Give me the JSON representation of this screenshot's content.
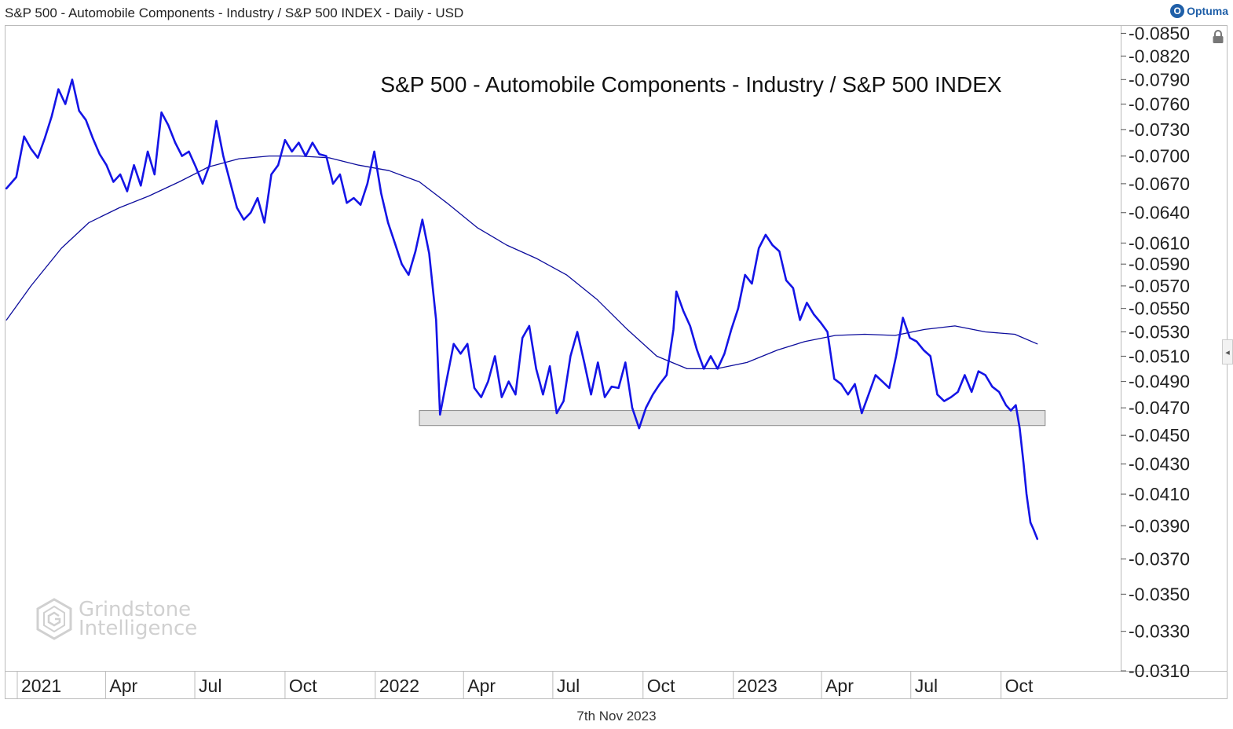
{
  "header": {
    "title": "S&P 500 - Automobile Components - Industry / S&P 500 INDEX - Daily - USD",
    "brand": "Optuma",
    "brand_mark": "O"
  },
  "watermark": {
    "line1": "Grindstone",
    "line2": "Intelligence"
  },
  "footer": {
    "date": "7th Nov 2023"
  },
  "icons": {
    "lock": "lock-icon",
    "collapse": "chevron-left-icon",
    "brand": "optuma-logo-icon",
    "watermark": "hexagon-g-logo-icon"
  },
  "colors": {
    "price": "#1414e6",
    "ma": "#0c0c9c",
    "band_fill": "#dddddd",
    "band_stroke": "#888888"
  },
  "chart_data": {
    "type": "line",
    "title": "S&P 500 - Automobile Components - Industry / S&P 500 INDEX",
    "y_scale": "log",
    "ylim": [
      0.031,
      0.086
    ],
    "xlim": [
      "2020-12-20",
      "2024-01-31"
    ],
    "y_ticks": [
      "0.0850",
      "0.0820",
      "0.0790",
      "0.0760",
      "0.0730",
      "0.0700",
      "0.0670",
      "0.0640",
      "0.0610",
      "0.0590",
      "0.0570",
      "0.0550",
      "0.0530",
      "0.0510",
      "0.0490",
      "0.0470",
      "0.0450",
      "0.0430",
      "0.0410",
      "0.0390",
      "0.0370",
      "0.0350",
      "0.0330",
      "0.0310"
    ],
    "x_ticks": [
      {
        "date": "2021-01-01",
        "label": "2021"
      },
      {
        "date": "2021-04-01",
        "label": "Apr"
      },
      {
        "date": "2021-07-01",
        "label": "Jul"
      },
      {
        "date": "2021-10-01",
        "label": "Oct"
      },
      {
        "date": "2022-01-01",
        "label": "2022"
      },
      {
        "date": "2022-04-01",
        "label": "Apr"
      },
      {
        "date": "2022-07-01",
        "label": "Jul"
      },
      {
        "date": "2022-10-01",
        "label": "Oct"
      },
      {
        "date": "2023-01-01",
        "label": "2023"
      },
      {
        "date": "2023-04-01",
        "label": "Apr"
      },
      {
        "date": "2023-07-01",
        "label": "Jul"
      },
      {
        "date": "2023-10-01",
        "label": "Oct"
      }
    ],
    "grid": false,
    "support_band": {
      "x": [
        "2022-02-15",
        "2023-11-15"
      ],
      "y": [
        0.0457,
        0.0468
      ]
    },
    "series": [
      {
        "name": "Price",
        "points": [
          [
            "2020-12-21",
            0.0665
          ],
          [
            "2020-12-31",
            0.0677
          ],
          [
            "2021-01-08",
            0.0722
          ],
          [
            "2021-01-15",
            0.0708
          ],
          [
            "2021-01-22",
            0.0698
          ],
          [
            "2021-01-29",
            0.072
          ],
          [
            "2021-02-05",
            0.0745
          ],
          [
            "2021-02-12",
            0.0778
          ],
          [
            "2021-02-19",
            0.076
          ],
          [
            "2021-02-26",
            0.079
          ],
          [
            "2021-03-05",
            0.0752
          ],
          [
            "2021-03-12",
            0.0741
          ],
          [
            "2021-03-19",
            0.072
          ],
          [
            "2021-03-26",
            0.0702
          ],
          [
            "2021-04-02",
            0.069
          ],
          [
            "2021-04-09",
            0.0672
          ],
          [
            "2021-04-16",
            0.068
          ],
          [
            "2021-04-23",
            0.0662
          ],
          [
            "2021-04-30",
            0.069
          ],
          [
            "2021-05-07",
            0.0668
          ],
          [
            "2021-05-14",
            0.0705
          ],
          [
            "2021-05-21",
            0.068
          ],
          [
            "2021-05-28",
            0.075
          ],
          [
            "2021-06-04",
            0.0735
          ],
          [
            "2021-06-11",
            0.0715
          ],
          [
            "2021-06-18",
            0.07
          ],
          [
            "2021-06-25",
            0.0705
          ],
          [
            "2021-07-02",
            0.0688
          ],
          [
            "2021-07-09",
            0.067
          ],
          [
            "2021-07-16",
            0.069
          ],
          [
            "2021-07-23",
            0.074
          ],
          [
            "2021-07-30",
            0.07
          ],
          [
            "2021-08-06",
            0.0672
          ],
          [
            "2021-08-13",
            0.0645
          ],
          [
            "2021-08-20",
            0.0633
          ],
          [
            "2021-08-27",
            0.064
          ],
          [
            "2021-09-03",
            0.0655
          ],
          [
            "2021-09-10",
            0.063
          ],
          [
            "2021-09-17",
            0.068
          ],
          [
            "2021-09-24",
            0.069
          ],
          [
            "2021-10-01",
            0.0718
          ],
          [
            "2021-10-08",
            0.0705
          ],
          [
            "2021-10-15",
            0.0715
          ],
          [
            "2021-10-22",
            0.07
          ],
          [
            "2021-10-29",
            0.0715
          ],
          [
            "2021-11-05",
            0.0702
          ],
          [
            "2021-11-12",
            0.07
          ],
          [
            "2021-11-19",
            0.067
          ],
          [
            "2021-11-26",
            0.068
          ],
          [
            "2021-12-03",
            0.065
          ],
          [
            "2021-12-10",
            0.0655
          ],
          [
            "2021-12-17",
            0.0648
          ],
          [
            "2021-12-24",
            0.067
          ],
          [
            "2021-12-31",
            0.0705
          ],
          [
            "2022-01-07",
            0.066
          ],
          [
            "2022-01-14",
            0.063
          ],
          [
            "2022-01-21",
            0.061
          ],
          [
            "2022-01-28",
            0.059
          ],
          [
            "2022-02-04",
            0.058
          ],
          [
            "2022-02-11",
            0.0602
          ],
          [
            "2022-02-18",
            0.0633
          ],
          [
            "2022-02-25",
            0.06
          ],
          [
            "2022-03-04",
            0.054
          ],
          [
            "2022-03-08",
            0.0465
          ],
          [
            "2022-03-15",
            0.0492
          ],
          [
            "2022-03-22",
            0.052
          ],
          [
            "2022-03-29",
            0.0512
          ],
          [
            "2022-04-05",
            0.052
          ],
          [
            "2022-04-12",
            0.0485
          ],
          [
            "2022-04-19",
            0.0478
          ],
          [
            "2022-04-26",
            0.049
          ],
          [
            "2022-05-03",
            0.051
          ],
          [
            "2022-05-10",
            0.0478
          ],
          [
            "2022-05-17",
            0.049
          ],
          [
            "2022-05-24",
            0.048
          ],
          [
            "2022-05-31",
            0.0525
          ],
          [
            "2022-06-07",
            0.0535
          ],
          [
            "2022-06-14",
            0.05
          ],
          [
            "2022-06-21",
            0.048
          ],
          [
            "2022-06-28",
            0.0502
          ],
          [
            "2022-07-05",
            0.0466
          ],
          [
            "2022-07-12",
            0.0475
          ],
          [
            "2022-07-19",
            0.051
          ],
          [
            "2022-07-26",
            0.053
          ],
          [
            "2022-08-02",
            0.0505
          ],
          [
            "2022-08-09",
            0.048
          ],
          [
            "2022-08-16",
            0.0505
          ],
          [
            "2022-08-23",
            0.0478
          ],
          [
            "2022-08-30",
            0.0486
          ],
          [
            "2022-09-06",
            0.0485
          ],
          [
            "2022-09-13",
            0.0505
          ],
          [
            "2022-09-20",
            0.047
          ],
          [
            "2022-09-27",
            0.0455
          ],
          [
            "2022-10-04",
            0.047
          ],
          [
            "2022-10-11",
            0.048
          ],
          [
            "2022-10-18",
            0.0488
          ],
          [
            "2022-10-25",
            0.0495
          ],
          [
            "2022-11-01",
            0.0532
          ],
          [
            "2022-11-04",
            0.0565
          ],
          [
            "2022-11-11",
            0.0548
          ],
          [
            "2022-11-18",
            0.0535
          ],
          [
            "2022-11-25",
            0.0515
          ],
          [
            "2022-12-02",
            0.05
          ],
          [
            "2022-12-09",
            0.051
          ],
          [
            "2022-12-16",
            0.05
          ],
          [
            "2022-12-23",
            0.0512
          ],
          [
            "2022-12-30",
            0.0532
          ],
          [
            "2023-01-06",
            0.055
          ],
          [
            "2023-01-13",
            0.058
          ],
          [
            "2023-01-20",
            0.0572
          ],
          [
            "2023-01-27",
            0.0605
          ],
          [
            "2023-02-03",
            0.0618
          ],
          [
            "2023-02-10",
            0.0608
          ],
          [
            "2023-02-17",
            0.0602
          ],
          [
            "2023-02-24",
            0.0575
          ],
          [
            "2023-03-03",
            0.0568
          ],
          [
            "2023-03-10",
            0.054
          ],
          [
            "2023-03-17",
            0.0555
          ],
          [
            "2023-03-24",
            0.0545
          ],
          [
            "2023-03-31",
            0.0538
          ],
          [
            "2023-04-07",
            0.053
          ],
          [
            "2023-04-14",
            0.0492
          ],
          [
            "2023-04-21",
            0.0488
          ],
          [
            "2023-04-28",
            0.048
          ],
          [
            "2023-05-05",
            0.0488
          ],
          [
            "2023-05-12",
            0.0466
          ],
          [
            "2023-05-19",
            0.048
          ],
          [
            "2023-05-26",
            0.0495
          ],
          [
            "2023-06-02",
            0.049
          ],
          [
            "2023-06-09",
            0.0485
          ],
          [
            "2023-06-16",
            0.051
          ],
          [
            "2023-06-23",
            0.0542
          ],
          [
            "2023-06-30",
            0.0525
          ],
          [
            "2023-07-07",
            0.0522
          ],
          [
            "2023-07-14",
            0.0515
          ],
          [
            "2023-07-21",
            0.051
          ],
          [
            "2023-07-28",
            0.048
          ],
          [
            "2023-08-04",
            0.0475
          ],
          [
            "2023-08-11",
            0.0478
          ],
          [
            "2023-08-18",
            0.0482
          ],
          [
            "2023-08-25",
            0.0495
          ],
          [
            "2023-09-01",
            0.0482
          ],
          [
            "2023-09-08",
            0.0498
          ],
          [
            "2023-09-15",
            0.0495
          ],
          [
            "2023-09-22",
            0.0486
          ],
          [
            "2023-09-29",
            0.0482
          ],
          [
            "2023-10-06",
            0.0472
          ],
          [
            "2023-10-11",
            0.0468
          ],
          [
            "2023-10-16",
            0.0472
          ],
          [
            "2023-10-20",
            0.0455
          ],
          [
            "2023-10-24",
            0.043
          ],
          [
            "2023-10-27",
            0.041
          ],
          [
            "2023-10-31",
            0.0392
          ],
          [
            "2023-11-03",
            0.0388
          ],
          [
            "2023-11-07",
            0.0382
          ]
        ]
      },
      {
        "name": "Moving Average",
        "points": [
          [
            "2020-12-21",
            0.054
          ],
          [
            "2021-01-15",
            0.057
          ],
          [
            "2021-02-15",
            0.0605
          ],
          [
            "2021-03-15",
            0.063
          ],
          [
            "2021-04-15",
            0.0645
          ],
          [
            "2021-05-15",
            0.0657
          ],
          [
            "2021-06-15",
            0.0672
          ],
          [
            "2021-07-15",
            0.0688
          ],
          [
            "2021-08-15",
            0.0697
          ],
          [
            "2021-09-15",
            0.07
          ],
          [
            "2021-10-15",
            0.07
          ],
          [
            "2021-11-15",
            0.0698
          ],
          [
            "2021-12-15",
            0.069
          ],
          [
            "2022-01-15",
            0.0684
          ],
          [
            "2022-02-15",
            0.0672
          ],
          [
            "2022-03-15",
            0.065
          ],
          [
            "2022-04-15",
            0.0625
          ],
          [
            "2022-05-15",
            0.0608
          ],
          [
            "2022-06-15",
            0.0595
          ],
          [
            "2022-07-15",
            0.058
          ],
          [
            "2022-08-15",
            0.0558
          ],
          [
            "2022-09-15",
            0.0532
          ],
          [
            "2022-10-15",
            0.051
          ],
          [
            "2022-11-15",
            0.05
          ],
          [
            "2022-12-15",
            0.05
          ],
          [
            "2023-01-15",
            0.0505
          ],
          [
            "2023-02-15",
            0.0515
          ],
          [
            "2023-03-15",
            0.0522
          ],
          [
            "2023-04-15",
            0.0527
          ],
          [
            "2023-05-15",
            0.0528
          ],
          [
            "2023-06-15",
            0.0527
          ],
          [
            "2023-07-15",
            0.0532
          ],
          [
            "2023-08-15",
            0.0535
          ],
          [
            "2023-09-15",
            0.053
          ],
          [
            "2023-10-15",
            0.0528
          ],
          [
            "2023-11-07",
            0.052
          ]
        ]
      }
    ]
  }
}
